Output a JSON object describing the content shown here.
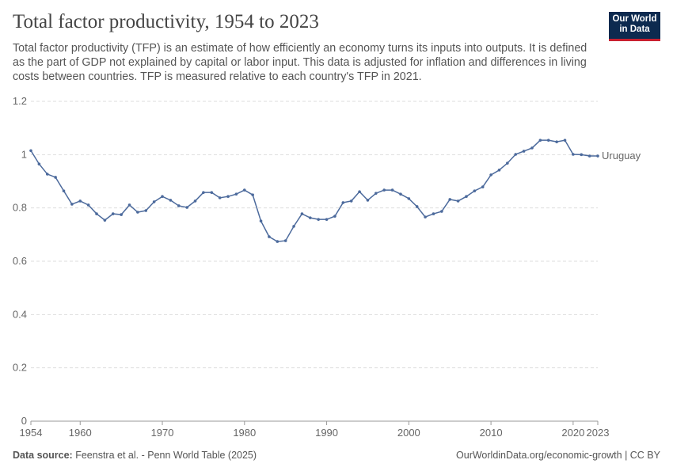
{
  "logo": {
    "lines": [
      "Our World",
      "in Data"
    ]
  },
  "chart_data": {
    "type": "line",
    "title": "Total factor productivity, 1954 to 2023",
    "subtitle": "Total factor productivity (TFP) is an estimate of how efficiently an economy turns its inputs into outputs. It is defined as the part of GDP not explained by capital or labor input. This data is adjusted for inflation and differences in living costs between countries. TFP is measured relative to each country's TFP in 2021.",
    "x": [
      1954,
      1955,
      1956,
      1957,
      1958,
      1959,
      1960,
      1961,
      1962,
      1963,
      1964,
      1965,
      1966,
      1967,
      1968,
      1969,
      1970,
      1971,
      1972,
      1973,
      1974,
      1975,
      1976,
      1977,
      1978,
      1979,
      1980,
      1981,
      1982,
      1983,
      1984,
      1985,
      1986,
      1987,
      1988,
      1989,
      1990,
      1991,
      1992,
      1993,
      1994,
      1995,
      1996,
      1997,
      1998,
      1999,
      2000,
      2001,
      2002,
      2003,
      2004,
      2005,
      2006,
      2007,
      2008,
      2009,
      2010,
      2011,
      2012,
      2013,
      2014,
      2015,
      2016,
      2017,
      2018,
      2019,
      2020,
      2021,
      2022,
      2023
    ],
    "series": [
      {
        "name": "Uruguay",
        "color": "#4c6a9c",
        "values": [
          1.015,
          0.965,
          0.927,
          0.915,
          0.864,
          0.814,
          0.826,
          0.811,
          0.778,
          0.754,
          0.778,
          0.775,
          0.811,
          0.784,
          0.79,
          0.823,
          0.843,
          0.829,
          0.808,
          0.802,
          0.826,
          0.858,
          0.858,
          0.838,
          0.843,
          0.852,
          0.867,
          0.849,
          0.751,
          0.692,
          0.674,
          0.677,
          0.731,
          0.778,
          0.763,
          0.757,
          0.757,
          0.769,
          0.82,
          0.826,
          0.861,
          0.829,
          0.855,
          0.867,
          0.867,
          0.852,
          0.835,
          0.805,
          0.766,
          0.778,
          0.787,
          0.832,
          0.826,
          0.843,
          0.864,
          0.879,
          0.924,
          0.942,
          0.968,
          1.001,
          1.013,
          1.025,
          1.054,
          1.054,
          1.048,
          1.054,
          1.001,
          1.0,
          0.995,
          0.995
        ]
      }
    ],
    "xlim": [
      1954,
      2023
    ],
    "xticks": [
      1954,
      1960,
      1970,
      1980,
      1990,
      2000,
      2010,
      2020,
      2023
    ],
    "ylim": [
      0,
      1.2
    ],
    "yticks": [
      0,
      0.2,
      0.4,
      0.6,
      0.8,
      1,
      1.2
    ],
    "grid": true,
    "source_label": "Data source:",
    "source": "Feenstra et al. - Penn World Table (2025)",
    "footer_right": "OurWorldinData.org/economic-growth | CC BY"
  }
}
